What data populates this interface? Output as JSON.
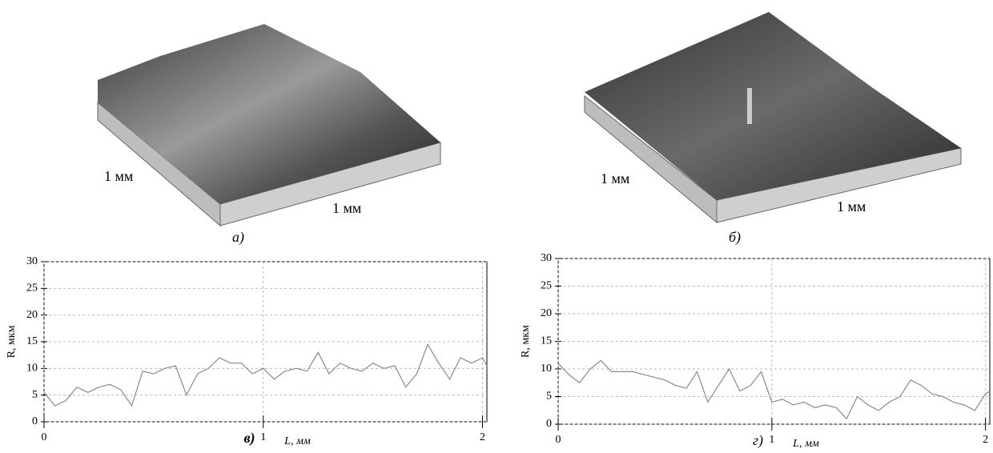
{
  "surfaces": [
    {
      "caption": "а)",
      "labels": [
        "1 мм",
        "1 мм"
      ]
    },
    {
      "caption": "б)",
      "labels": [
        "1 мм",
        "1 мм"
      ]
    }
  ],
  "chart_data": [
    {
      "type": "line",
      "caption": "в)",
      "x_label": "L, мм",
      "y_label": "R, мкм",
      "color": "#8a8a8a",
      "grid": true,
      "xlim": [
        0,
        2.02
      ],
      "ylim": [
        0,
        30
      ],
      "xticks": [
        0,
        1,
        2
      ],
      "yticks": [
        0,
        5,
        10,
        15,
        20,
        25,
        30
      ],
      "x": [
        0,
        0.05,
        0.1,
        0.15,
        0.2,
        0.25,
        0.3,
        0.35,
        0.4,
        0.45,
        0.5,
        0.55,
        0.6,
        0.65,
        0.7,
        0.75,
        0.8,
        0.85,
        0.9,
        0.95,
        1,
        1.05,
        1.1,
        1.15,
        1.2,
        1.25,
        1.3,
        1.35,
        1.4,
        1.45,
        1.5,
        1.55,
        1.6,
        1.65,
        1.7,
        1.75,
        1.8,
        1.85,
        1.9,
        1.95,
        2,
        2.02
      ],
      "values": [
        5.5,
        3,
        4,
        6.5,
        5.5,
        6.5,
        7,
        6,
        3,
        9.5,
        9,
        10,
        10.5,
        5,
        9,
        10,
        12,
        11,
        11,
        9,
        10,
        8,
        9.5,
        10,
        9.5,
        13,
        9,
        11,
        10,
        9.5,
        11,
        10,
        10.5,
        6.5,
        9,
        14.5,
        11,
        8,
        12,
        11,
        12,
        10.5
      ]
    },
    {
      "type": "line",
      "caption": "г)",
      "x_label": "L, мм",
      "y_label": "R, мкм",
      "color": "#8a8a8a",
      "grid": true,
      "xlim": [
        0,
        2.02
      ],
      "ylim": [
        0,
        30
      ],
      "xticks": [
        0,
        1,
        2
      ],
      "yticks": [
        0,
        5,
        10,
        15,
        20,
        25,
        30
      ],
      "x": [
        0,
        0.05,
        0.1,
        0.15,
        0.2,
        0.25,
        0.3,
        0.35,
        0.4,
        0.45,
        0.5,
        0.55,
        0.6,
        0.65,
        0.7,
        0.75,
        0.8,
        0.85,
        0.9,
        0.95,
        1,
        1.05,
        1.1,
        1.15,
        1.2,
        1.25,
        1.3,
        1.35,
        1.4,
        1.45,
        1.5,
        1.55,
        1.6,
        1.65,
        1.7,
        1.75,
        1.8,
        1.85,
        1.9,
        1.95,
        2,
        2.02
      ],
      "values": [
        11,
        9,
        7.5,
        10,
        11.5,
        9.5,
        9.5,
        9.5,
        9,
        8.5,
        8,
        7,
        6.5,
        9.5,
        4,
        7,
        10,
        6,
        7,
        9.5,
        4,
        4.5,
        3.5,
        4,
        3,
        3.5,
        3,
        1,
        5,
        3.5,
        2.5,
        4,
        5,
        8,
        7,
        5.5,
        5,
        4,
        3.5,
        2.5,
        5.5,
        6
      ]
    }
  ]
}
